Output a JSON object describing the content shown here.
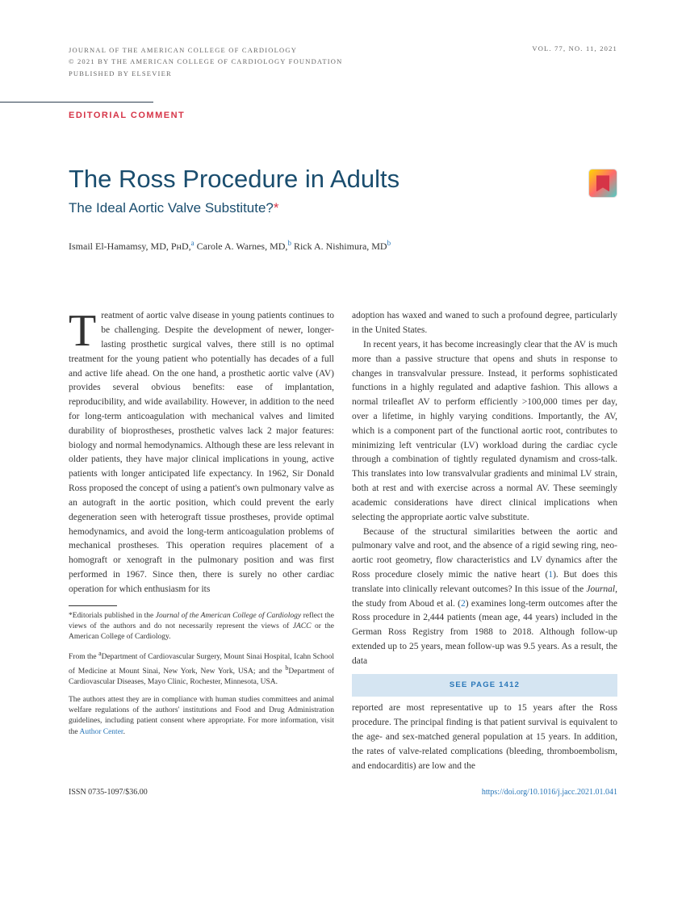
{
  "header": {
    "journal_line1": "JOURNAL OF THE AMERICAN COLLEGE OF CARDIOLOGY",
    "journal_line2": "© 2021 BY THE AMERICAN COLLEGE OF CARDIOLOGY FOUNDATION",
    "journal_line3": "PUBLISHED BY ELSEVIER",
    "volume_info": "VOL. 77, NO. 11, 2021"
  },
  "editorial_label": "EDITORIAL COMMENT",
  "title": "The Ross Procedure in Adults",
  "subtitle": "The Ideal Aortic Valve Substitute?",
  "authors_html": "Ismail El-Hamamsy, MD, PʜD,<sup class=\"author-sup\">a</sup> Carole A. Warnes, MD,<sup class=\"author-sup\">b</sup> Rick A. Nishimura, MD<sup class=\"author-sup\">b</sup>",
  "col1_para1_html": "<span class=\"dropcap\">T</span>reatment of aortic valve disease in young patients continues to be challenging. Despite the development of newer, longer-lasting prosthetic surgical valves, there still is no optimal treatment for the young patient who potentially has decades of a full and active life ahead. On the one hand, a prosthetic aortic valve (AV) provides several obvious benefits: ease of implantation, reproducibility, and wide availability. However, in addition to the need for long-term anticoagulation with mechanical valves and limited durability of bioprostheses, prosthetic valves lack 2 major features: biology and normal hemodynamics. Although these are less relevant in older patients, they have major clinical implications in young, active patients with longer anticipated life expectancy. In 1962, Sir Donald Ross proposed the concept of using a patient's own pulmonary valve as an autograft in the aortic position, which could prevent the early degeneration seen with heterograft tissue prostheses, provide optimal hemodynamics, and avoid the long-term anticoagulation problems of mechanical prostheses. This operation requires placement of a homograft or xenograft in the pulmonary position and was first performed in 1967. Since then, there is surely no other cardiac operation for which enthusiasm for its",
  "col2_para1": "adoption has waxed and waned to such a profound degree, particularly in the United States.",
  "col2_para2": "In recent years, it has become increasingly clear that the AV is much more than a passive structure that opens and shuts in response to changes in transvalvular pressure. Instead, it performs sophisticated functions in a highly regulated and adaptive fashion. This allows a normal trileaflet AV to perform efficiently >100,000 times per day, over a lifetime, in highly varying conditions. Importantly, the AV, which is a component part of the functional aortic root, contributes to minimizing left ventricular (LV) workload during the cardiac cycle through a combination of tightly regulated dynamism and cross-talk. This translates into low transvalvular gradients and minimal LV strain, both at rest and with exercise across a normal AV. These seemingly academic considerations have direct clinical implications when selecting the appropriate aortic valve substitute.",
  "col2_para3_html": "Because of the structural similarities between the aortic and pulmonary valve and root, and the absence of a rigid sewing ring, neo-aortic root geometry, flow characteristics and LV dynamics after the Ross procedure closely mimic the native heart (<span class=\"ref-link\">1</span>). But does this translate into clinically relevant outcomes? In this issue of the <span class=\"italic\">Journal,</span> the study from Aboud et al. (<span class=\"ref-link\">2</span>) examines long-term outcomes after the Ross procedure in 2,444 patients (mean age, 44 years) included in the German Ross Registry from 1988 to 2018. Although follow-up extended up to 25 years, mean follow-up was 9.5 years. As a result, the data",
  "see_page": "SEE PAGE 1412",
  "col2_para4": "reported are most representative up to 15 years after the Ross procedure. The principal finding is that patient survival is equivalent to the age- and sex-matched general population at 15 years. In addition, the rates of valve-related complications (bleeding, thromboembolism, and endocarditis) are low and the",
  "footnotes": {
    "fn1_html": "*Editorials published in the <span class=\"italic\">Journal of the American College of Cardiology</span> reflect the views of the authors and do not necessarily represent the views of <span class=\"italic\">JACC</span> or the American College of Cardiology.",
    "fn2_html": "From the <sup>a</sup>Department of Cardiovascular Surgery, Mount Sinai Hospital, Icahn School of Medicine at Mount Sinai, New York, New York, USA; and the <sup>b</sup>Department of Cardiovascular Diseases, Mayo Clinic, Rochester, Minnesota, USA.",
    "fn3_html": "The authors attest they are in compliance with human studies committees and animal welfare regulations of the authors' institutions and Food and Drug Administration guidelines, including patient consent where appropriate. For more information, visit the <span class=\"ref-link\">Author Center</span>."
  },
  "footer": {
    "issn": "ISSN 0735-1097/$36.00",
    "doi": "https://doi.org/10.1016/j.jacc.2021.01.041"
  },
  "colors": {
    "accent_red": "#d63447",
    "accent_blue": "#2876b8",
    "title_blue": "#1a4d6e",
    "box_bg": "#d5e5f2"
  }
}
